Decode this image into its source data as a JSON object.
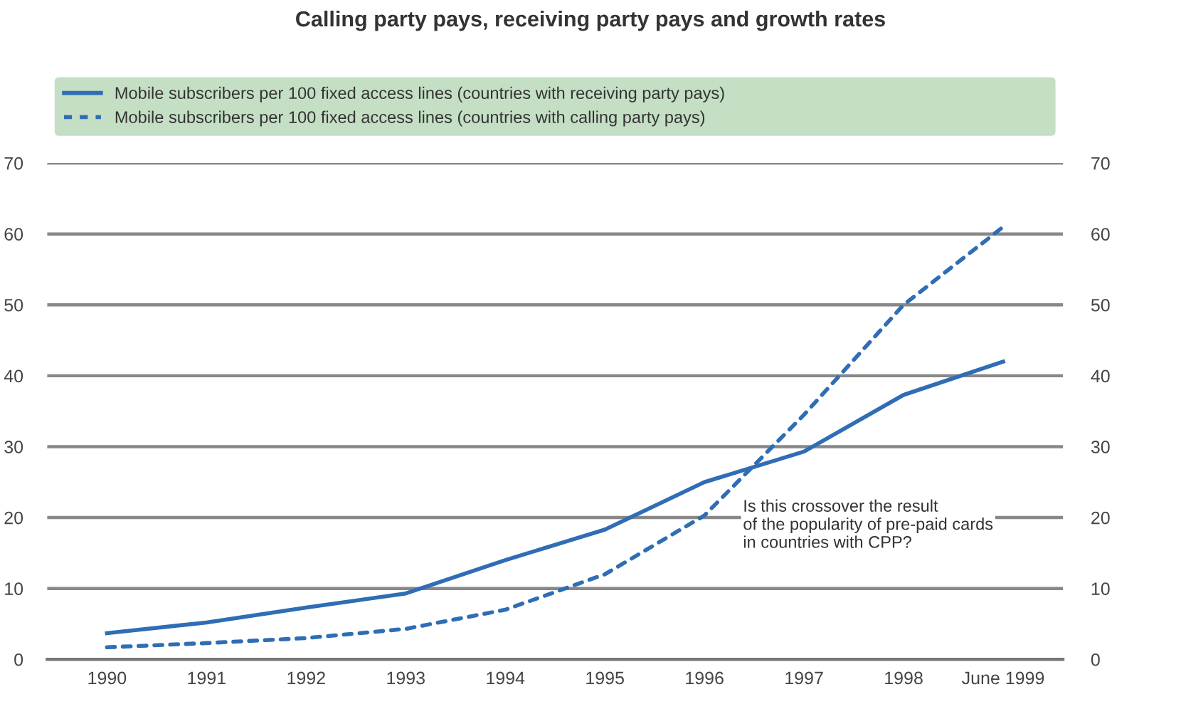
{
  "chart_data": {
    "type": "line",
    "title": "Calling party pays, receiving party pays and growth rates",
    "categories": [
      "1990",
      "1991",
      "1992",
      "1993",
      "1994",
      "1995",
      "1996",
      "1997",
      "1998",
      "June 1999"
    ],
    "series": [
      {
        "name": "Mobile subscribers per 100 fixed access lines (countries with receiving party pays)",
        "color": "#2f6db5",
        "line_style": "solid",
        "values": [
          3.7,
          5.2,
          7.3,
          9.3,
          14,
          18.3,
          25,
          29.3,
          37.3,
          42
        ]
      },
      {
        "name": "Mobile subscribers per 100 fixed access lines (countries with calling party pays)",
        "color": "#2f6db5",
        "line_style": "dashed",
        "values": [
          1.7,
          2.3,
          3.0,
          4.3,
          7,
          12,
          20.3,
          34.5,
          50,
          61
        ]
      }
    ],
    "ylim": [
      0,
      70
    ],
    "yticks": [
      0,
      10,
      20,
      30,
      40,
      50,
      60,
      70
    ],
    "y2lim": [
      0,
      70
    ],
    "y2ticks": [
      0,
      10,
      20,
      30,
      40,
      50,
      60,
      70
    ],
    "grid": "y",
    "legend": "top",
    "marker": "none",
    "annotations": [
      "Is this crossover the result\nof the popularity of pre-paid cards\nin countries with CPP?"
    ]
  }
}
